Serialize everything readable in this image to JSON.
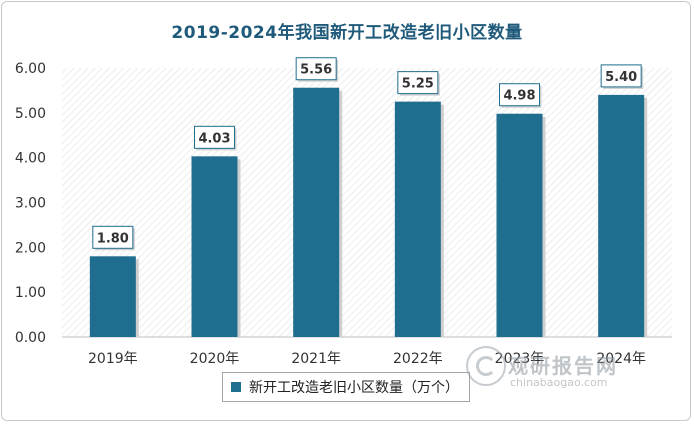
{
  "chart_data": {
    "type": "bar",
    "title": "2019-2024年我国新开工改造老旧小区数量",
    "categories": [
      "2019年",
      "2020年",
      "2021年",
      "2022年",
      "2023年",
      "2024年"
    ],
    "series": [
      {
        "name": "新开工改造老旧小区数量（万个）",
        "values": [
          1.8,
          4.03,
          5.56,
          5.25,
          4.98,
          5.4
        ]
      }
    ],
    "data_labels": [
      "1.80",
      "4.03",
      "5.56",
      "5.25",
      "4.98",
      "5.40"
    ],
    "ylim": [
      0,
      6
    ],
    "yticks": [
      "0.00",
      "1.00",
      "2.00",
      "3.00",
      "4.00",
      "5.00",
      "6.00"
    ],
    "xlabel": "",
    "ylabel": "",
    "legend_position": "bottom",
    "grid": false,
    "colors": {
      "bar": "#1f6d8f",
      "title": "#1f5a7a",
      "label_border": "#1f6d8f"
    }
  },
  "watermark": {
    "brand": "观研报告网",
    "url": "chinabaogao.com",
    "icon": "logo-icon"
  }
}
